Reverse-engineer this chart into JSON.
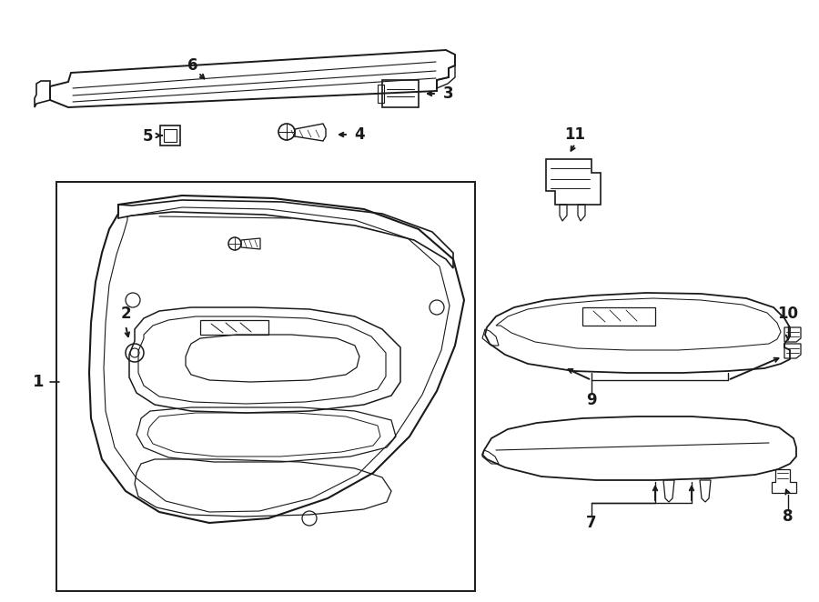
{
  "bg_color": "#ffffff",
  "line_color": "#1a1a1a",
  "figsize": [
    9.0,
    6.62
  ],
  "dpi": 100,
  "parts_labels": [
    "1",
    "2",
    "3",
    "4",
    "5",
    "6",
    "7",
    "8",
    "9",
    "10",
    "11"
  ]
}
